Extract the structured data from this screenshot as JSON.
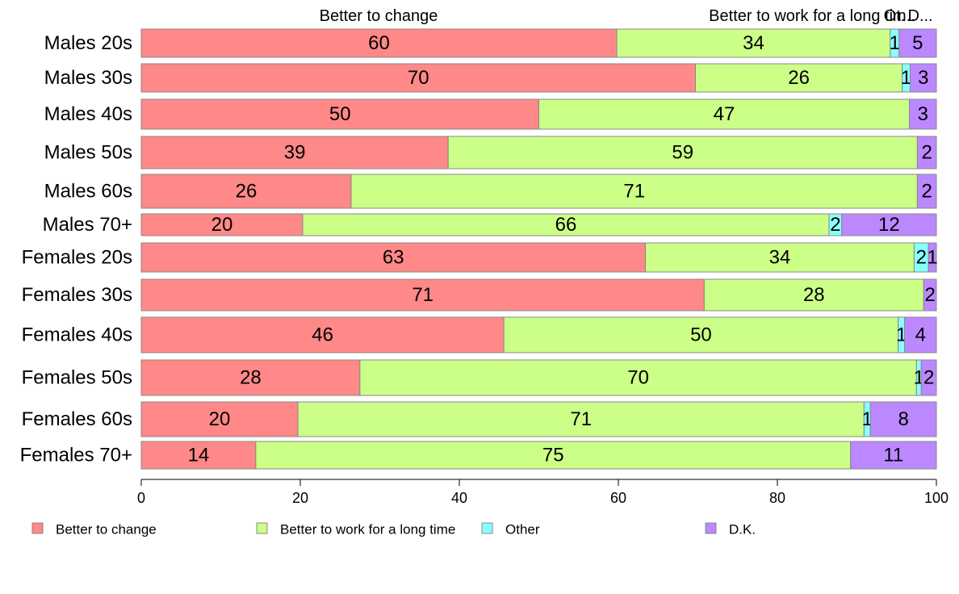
{
  "chart_data": {
    "type": "bar",
    "orientation": "horizontal",
    "stacked": true,
    "categories": [
      "Males 20s",
      "Males 30s",
      "Males 40s",
      "Males 50s",
      "Males 60s",
      "Males 70+",
      "Females 20s",
      "Females 30s",
      "Females 40s",
      "Females 50s",
      "Females 60s",
      "Females 70+"
    ],
    "series": [
      {
        "name": "Better to change",
        "color": "#ff8888",
        "values": [
          59.8,
          69.7,
          50.0,
          38.6,
          26.4,
          20.3,
          63.4,
          70.8,
          45.6,
          27.5,
          19.7,
          14.4
        ],
        "labels": [
          "60",
          "70",
          "50",
          "39",
          "26",
          "20",
          "63",
          "71",
          "46",
          "28",
          "20",
          "14"
        ]
      },
      {
        "name": "Better to work for a long time",
        "color": "#ccff88",
        "values": [
          34.4,
          26.0,
          46.6,
          59.0,
          71.2,
          66.2,
          33.8,
          27.6,
          49.6,
          70.0,
          71.2,
          74.8
        ],
        "labels": [
          "34",
          "26",
          "47",
          "59",
          "71",
          "66",
          "34",
          "28",
          "50",
          "70",
          "71",
          "75"
        ]
      },
      {
        "name": "Other",
        "color": "#88ffff",
        "values": [
          1.1,
          1.0,
          0.0,
          0.0,
          0.0,
          1.6,
          1.8,
          0.0,
          0.8,
          0.6,
          0.8,
          0.0
        ],
        "labels": [
          "1",
          "1",
          "",
          "",
          "",
          "2",
          "2",
          "",
          "1",
          "1",
          "1",
          ""
        ]
      },
      {
        "name": "D.K.",
        "color": "#bb88ff",
        "values": [
          4.7,
          3.3,
          3.4,
          2.4,
          2.4,
          11.9,
          1.0,
          1.6,
          4.0,
          1.9,
          8.3,
          10.8
        ],
        "labels": [
          "5",
          "3",
          "3",
          "2",
          "2",
          "12",
          "1",
          "2",
          "4",
          "2",
          "8",
          "11"
        ]
      }
    ],
    "top_labels": [
      "Better to change",
      "Better to work for a long tim..",
      "Ot.",
      "D..."
    ],
    "x_ticks": [
      "0",
      "20",
      "40",
      "60",
      "80",
      "100"
    ],
    "xlim": [
      0,
      100
    ],
    "grid": false,
    "legend_position": "bottom",
    "title": "",
    "xlabel": "",
    "ylabel": ""
  }
}
